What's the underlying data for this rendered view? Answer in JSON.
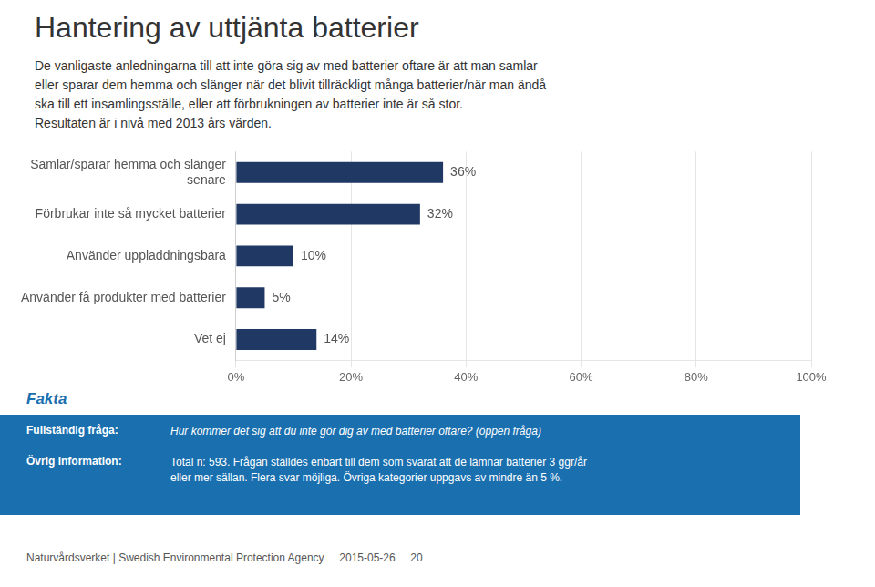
{
  "chart_data": {
    "type": "bar",
    "orientation": "horizontal",
    "title": "Hantering av uttjänta batterier",
    "subtitle": "De vanligaste anledningarna till att inte göra sig av med batterier oftare är att man samlar\neller sparar dem hemma och slänger när det blivit tillräckligt många batterier/när man ändå\nska till ett insamlingsställe, eller att förbrukningen av batterier inte är så stor.\nResultaten är i nivå med 2013 års värden.",
    "categories": [
      "Samlar/sparar hemma och slänger\nsenare",
      "Förbrukar inte så mycket batterier",
      "Använder uppladdningsbara",
      "Använder få produkter med batterier",
      "Vet ej"
    ],
    "values": [
      36,
      32,
      10,
      5,
      14
    ],
    "value_labels": [
      "36%",
      "32%",
      "10%",
      "5%",
      "14%"
    ],
    "data_labels": true,
    "color": "#1F3864",
    "xlim": [
      0,
      100
    ],
    "xticks": [
      {
        "value": 0,
        "label": "0%"
      },
      {
        "value": 20,
        "label": "20%"
      },
      {
        "value": 40,
        "label": "40%"
      },
      {
        "value": 60,
        "label": "60%"
      },
      {
        "value": 80,
        "label": "80%"
      },
      {
        "value": 100,
        "label": "100%"
      }
    ],
    "grid": true,
    "annotations": [
      "Fakta",
      "Fullständig fråga:",
      "Hur kommer det sig att du inte gör dig av med batterier oftare? (öppen fråga)",
      "Övrig information:",
      "Total n: 593. Frågan ställdes enbart till dem som svarat att de lämnar batterier 3 ggr/år\neller mer sällan. Flera svar möjliga. Övriga kategorier uppgavs av mindre än 5 %.",
      "Naturvårdsverket | Swedish Environmental Protection Agency     2015-05-26     20"
    ]
  }
}
